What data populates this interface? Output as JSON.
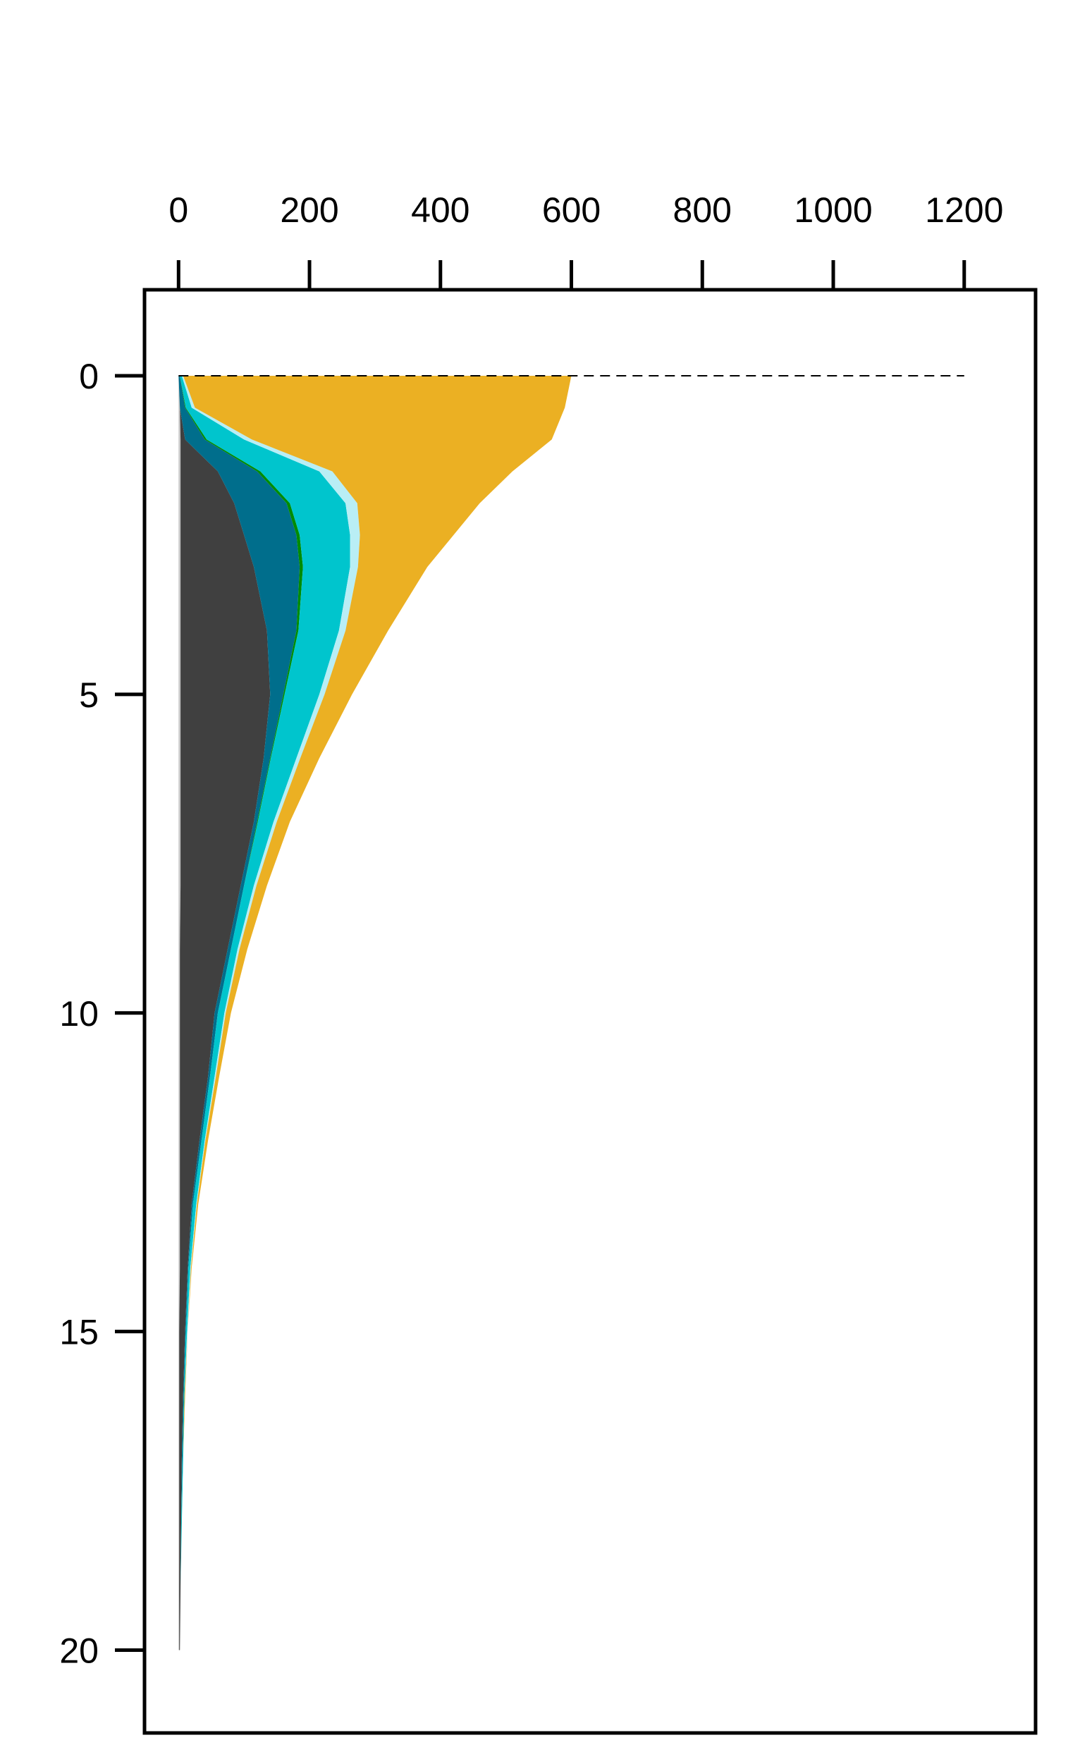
{
  "chart_data": {
    "type": "stacked_area_horizontal",
    "y": [
      0,
      0.5,
      1,
      1.5,
      2,
      2.5,
      3,
      4,
      5,
      6,
      7,
      8,
      9,
      10,
      11,
      12,
      13,
      14,
      15,
      16,
      17,
      18,
      19,
      20
    ],
    "series": [
      {
        "color": "#c8c8c8",
        "values": [
          0,
          2,
          3,
          3,
          3,
          3,
          3,
          3,
          3,
          3,
          3,
          3,
          2,
          2,
          2,
          2,
          2,
          2,
          1,
          1,
          1,
          1,
          1,
          1
        ]
      },
      {
        "color": "#404040",
        "values": [
          0,
          0,
          7,
          57,
          82,
          97,
          112,
          132,
          137,
          127,
          112,
          92,
          73,
          53,
          43,
          30,
          18,
          12,
          9,
          6,
          4,
          3,
          2,
          1
        ]
      },
      {
        "color": "#006e8c",
        "values": [
          2,
          8,
          30,
          60,
          80,
          80,
          70,
          45,
          20,
          10,
          5,
          5,
          5,
          5,
          3,
          3,
          2,
          1,
          1,
          1,
          1,
          0,
          0,
          0
        ]
      },
      {
        "color": "#008c00",
        "values": [
          0,
          1,
          3,
          5,
          5,
          5,
          5,
          3,
          2,
          1,
          1,
          0,
          0,
          0,
          0,
          0,
          0,
          0,
          0,
          0,
          0,
          0,
          0,
          0
        ]
      },
      {
        "color": "#00c5cd",
        "values": [
          3,
          9,
          57,
          90,
          85,
          77,
          72,
          62,
          53,
          39,
          24,
          15,
          10,
          10,
          7,
          5,
          5,
          3,
          2,
          1,
          1,
          1,
          0,
          0
        ]
      },
      {
        "color": "#b9eef5",
        "values": [
          2,
          5,
          12,
          20,
          18,
          15,
          12,
          10,
          8,
          6,
          5,
          4,
          3,
          2,
          2,
          1,
          1,
          1,
          1,
          0,
          0,
          0,
          0,
          0
        ]
      },
      {
        "color": "#ebb023",
        "values": [
          593,
          565,
          458,
          275,
          187,
          143,
          106,
          65,
          42,
          29,
          20,
          16,
          12,
          8,
          5,
          4,
          2,
          1,
          0,
          1,
          0,
          0,
          0,
          0
        ]
      }
    ],
    "xlim": [
      -52,
      1309
    ],
    "xticks": [
      0,
      200,
      400,
      600,
      800,
      1000,
      1200
    ],
    "ylim": [
      -1.35,
      21.3
    ],
    "yticks": [
      0,
      5,
      10,
      15,
      20
    ],
    "y_inverted": true,
    "hline": 0
  }
}
